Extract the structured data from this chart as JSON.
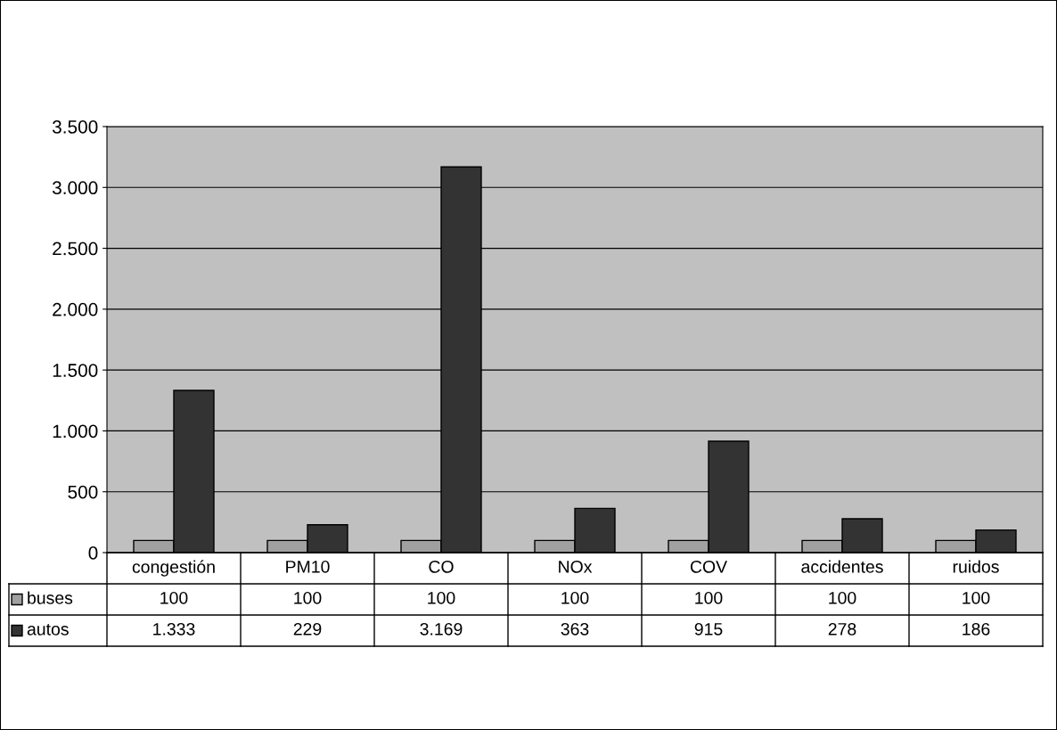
{
  "chart_data": {
    "type": "bar",
    "categories": [
      "congestión",
      "PM10",
      "CO",
      "NOx",
      "COV",
      "accidentes",
      "ruidos"
    ],
    "series": [
      {
        "name": "buses",
        "color": "#a0a0a0",
        "values": [
          100,
          100,
          100,
          100,
          100,
          100,
          100
        ],
        "value_labels": [
          "100",
          "100",
          "100",
          "100",
          "100",
          "100",
          "100"
        ]
      },
      {
        "name": "autos",
        "color": "#333333",
        "values": [
          1333,
          229,
          3169,
          363,
          915,
          278,
          186
        ],
        "value_labels": [
          "1.333",
          "229",
          "3.169",
          "363",
          "915",
          "278",
          "186"
        ]
      }
    ],
    "ylim": [
      0,
      3500
    ],
    "yticks": [
      {
        "value": 0,
        "label": "0"
      },
      {
        "value": 500,
        "label": "500"
      },
      {
        "value": 1000,
        "label": "1.000"
      },
      {
        "value": 1500,
        "label": "1.500"
      },
      {
        "value": 2000,
        "label": "2.000"
      },
      {
        "value": 2500,
        "label": "2.500"
      },
      {
        "value": 3000,
        "label": "3.000"
      },
      {
        "value": 3500,
        "label": "3.500"
      }
    ],
    "grid": "y",
    "legend": "bottom"
  }
}
